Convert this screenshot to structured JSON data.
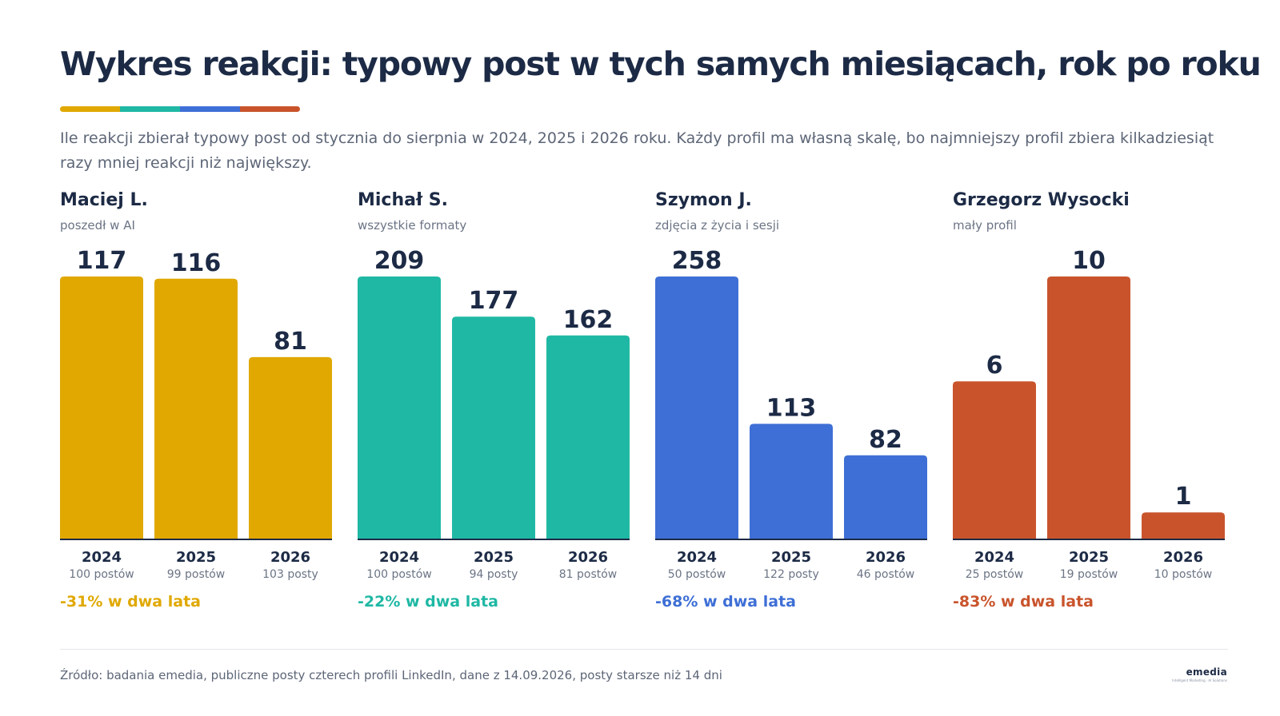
{
  "title": "Wykres reakcji: typowy post w tych samych miesiącach, rok po roku",
  "subtitle": "Ile reakcji zbierał typowy post od stycznia do sierpnia w 2024, 2025 i 2026 roku. Każdy profil ma własną skalę, bo najmniejszy profil zbiera kilkadziesiąt razy mniej reakcji niż największy.",
  "stripe_colors": [
    "#e0a800",
    "#1fb8a4",
    "#3e6fd6",
    "#c9542c"
  ],
  "chart_data": [
    {
      "type": "bar",
      "title": "Maciej L.",
      "subtitle": "poszedł w AI",
      "color": "#e0a800",
      "categories": [
        "2024",
        "2025",
        "2026"
      ],
      "values": [
        117,
        116,
        81
      ],
      "ylim": [
        0,
        117
      ],
      "posts": [
        "100 postów",
        "99 postów",
        "103 posty"
      ],
      "change": "-31% w dwa lata"
    },
    {
      "type": "bar",
      "title": "Michał S.",
      "subtitle": "wszystkie formaty",
      "color": "#1fb8a4",
      "categories": [
        "2024",
        "2025",
        "2026"
      ],
      "values": [
        209,
        177,
        162
      ],
      "ylim": [
        0,
        209
      ],
      "posts": [
        "100 postów",
        "94 posty",
        "81 postów"
      ],
      "change": "-22% w dwa lata"
    },
    {
      "type": "bar",
      "title": "Szymon J.",
      "subtitle": "zdjęcia z życia i sesji",
      "color": "#3e6fd6",
      "categories": [
        "2024",
        "2025",
        "2026"
      ],
      "values": [
        258,
        113,
        82
      ],
      "ylim": [
        0,
        258
      ],
      "posts": [
        "50 postów",
        "122 posty",
        "46 postów"
      ],
      "change": "-68% w dwa lata"
    },
    {
      "type": "bar",
      "title": "Grzegorz Wysocki",
      "subtitle": "mały profil",
      "color": "#c9542c",
      "categories": [
        "2024",
        "2025",
        "2026"
      ],
      "values": [
        6,
        10,
        1
      ],
      "ylim": [
        0,
        10
      ],
      "posts": [
        "25 postów",
        "19 postów",
        "10 postów"
      ],
      "change": "-83% w dwa lata"
    }
  ],
  "source": "Źródło: badania emedia, publiczne posty czterech profili LinkedIn, dane z 14.09.2026, posty starsze niż 14 dni",
  "logo": {
    "text": "emedia",
    "tagline": "Intelligent Marketing · AI Solutions"
  }
}
